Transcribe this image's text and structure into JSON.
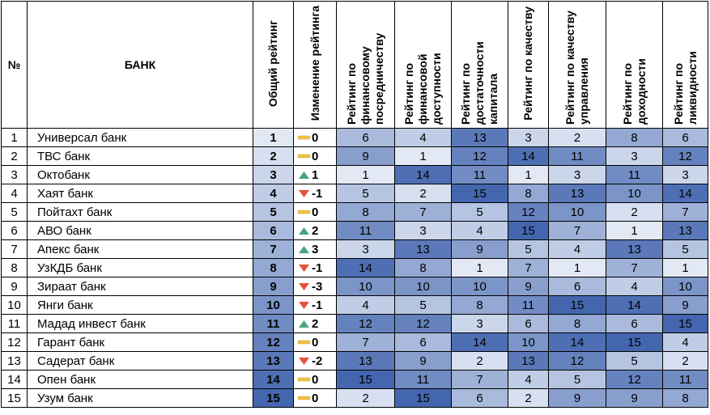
{
  "table": {
    "header": [
      "№",
      "БАНК",
      "Общий рейтинг",
      "Изменение рейтинга",
      "Рейтинг по финансовому посредничеству",
      "Рейтинг по финансовой доступности",
      "Рейтинг по достаточности капитала",
      "Рейтинг по качеству",
      "Рейтинг по качеству управления",
      "Рейтинг по доходности",
      "Рейтинг по ликвидности"
    ],
    "rows": [
      [
        1,
        "Универсал банк",
        1,
        0,
        6,
        4,
        13,
        3,
        2,
        8,
        6
      ],
      [
        2,
        "ТВС банк",
        2,
        0,
        9,
        1,
        12,
        14,
        11,
        3,
        12
      ],
      [
        3,
        "Октобанк",
        3,
        1,
        1,
        14,
        11,
        1,
        3,
        11,
        3
      ],
      [
        4,
        "Хаят банк",
        4,
        -1,
        5,
        2,
        15,
        8,
        13,
        10,
        14
      ],
      [
        5,
        "Пойтахт банк",
        5,
        0,
        8,
        7,
        5,
        12,
        10,
        2,
        7
      ],
      [
        6,
        "АВО банк",
        6,
        2,
        11,
        3,
        4,
        15,
        7,
        1,
        13
      ],
      [
        7,
        "Апекс банк",
        7,
        3,
        3,
        13,
        9,
        5,
        4,
        13,
        5
      ],
      [
        8,
        "УзКДБ банк",
        8,
        -1,
        14,
        8,
        1,
        7,
        1,
        7,
        1
      ],
      [
        9,
        "Зираат банк",
        9,
        -3,
        10,
        10,
        10,
        9,
        6,
        4,
        10
      ],
      [
        10,
        "Янги банк",
        10,
        -1,
        4,
        5,
        8,
        11,
        15,
        14,
        9
      ],
      [
        11,
        "Мадад инвест банк",
        11,
        2,
        12,
        12,
        3,
        6,
        8,
        6,
        15
      ],
      [
        12,
        "Гарант банк",
        12,
        0,
        7,
        6,
        14,
        10,
        14,
        15,
        4
      ],
      [
        13,
        "Садерат банк",
        13,
        -2,
        13,
        9,
        2,
        13,
        12,
        5,
        2
      ],
      [
        14,
        "Опен банк",
        14,
        0,
        15,
        11,
        7,
        4,
        5,
        12,
        11
      ],
      [
        15,
        "Узум банк",
        15,
        0,
        2,
        15,
        6,
        2,
        9,
        9,
        8
      ]
    ]
  }
}
